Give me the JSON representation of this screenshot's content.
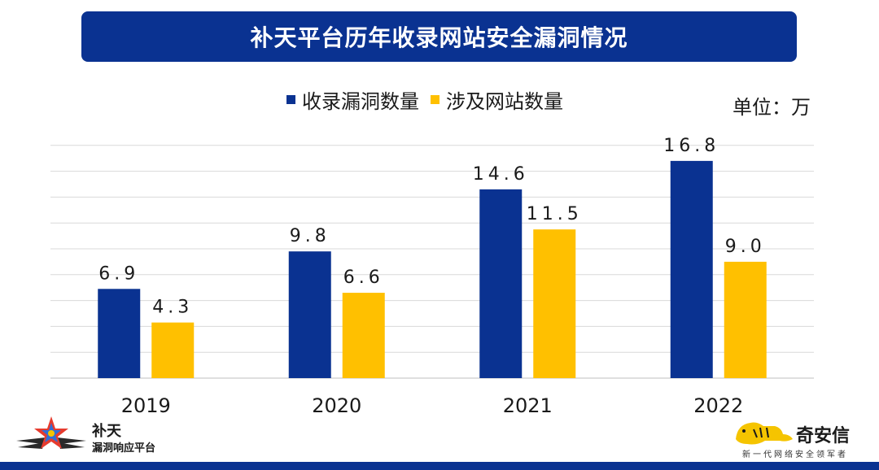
{
  "title": "补天平台历年收录网站安全漏洞情况",
  "unit_label": "单位：万",
  "colors": {
    "banner": "#0a3291",
    "series_1": "#0a3291",
    "series_2": "#ffc000",
    "grid": "#d9d9d9"
  },
  "chart_data": {
    "type": "bar",
    "title": "补天平台历年收录网站安全漏洞情况",
    "categories": [
      "2019",
      "2020",
      "2021",
      "2022"
    ],
    "series": [
      {
        "name": "收录漏洞数量",
        "values": [
          6.9,
          9.8,
          14.6,
          16.8
        ],
        "labels": [
          "6.9",
          "9.8",
          "14.6",
          "16.8"
        ]
      },
      {
        "name": "涉及网站数量",
        "values": [
          4.3,
          6.6,
          11.5,
          9.0
        ],
        "labels": [
          "4.3",
          "6.6",
          "11.5",
          "9.0"
        ]
      }
    ],
    "ylim": [
      0,
      18
    ],
    "grid": true,
    "legend_position": "top",
    "xlabel": "",
    "ylabel": ""
  },
  "logo_left": {
    "name": "补天",
    "subtitle": "漏洞响应平台",
    "icon": "star-wings-icon"
  },
  "logo_right": {
    "name": "奇安信",
    "slogan": "新一代网络安全领军者",
    "icon": "tiger-icon"
  }
}
